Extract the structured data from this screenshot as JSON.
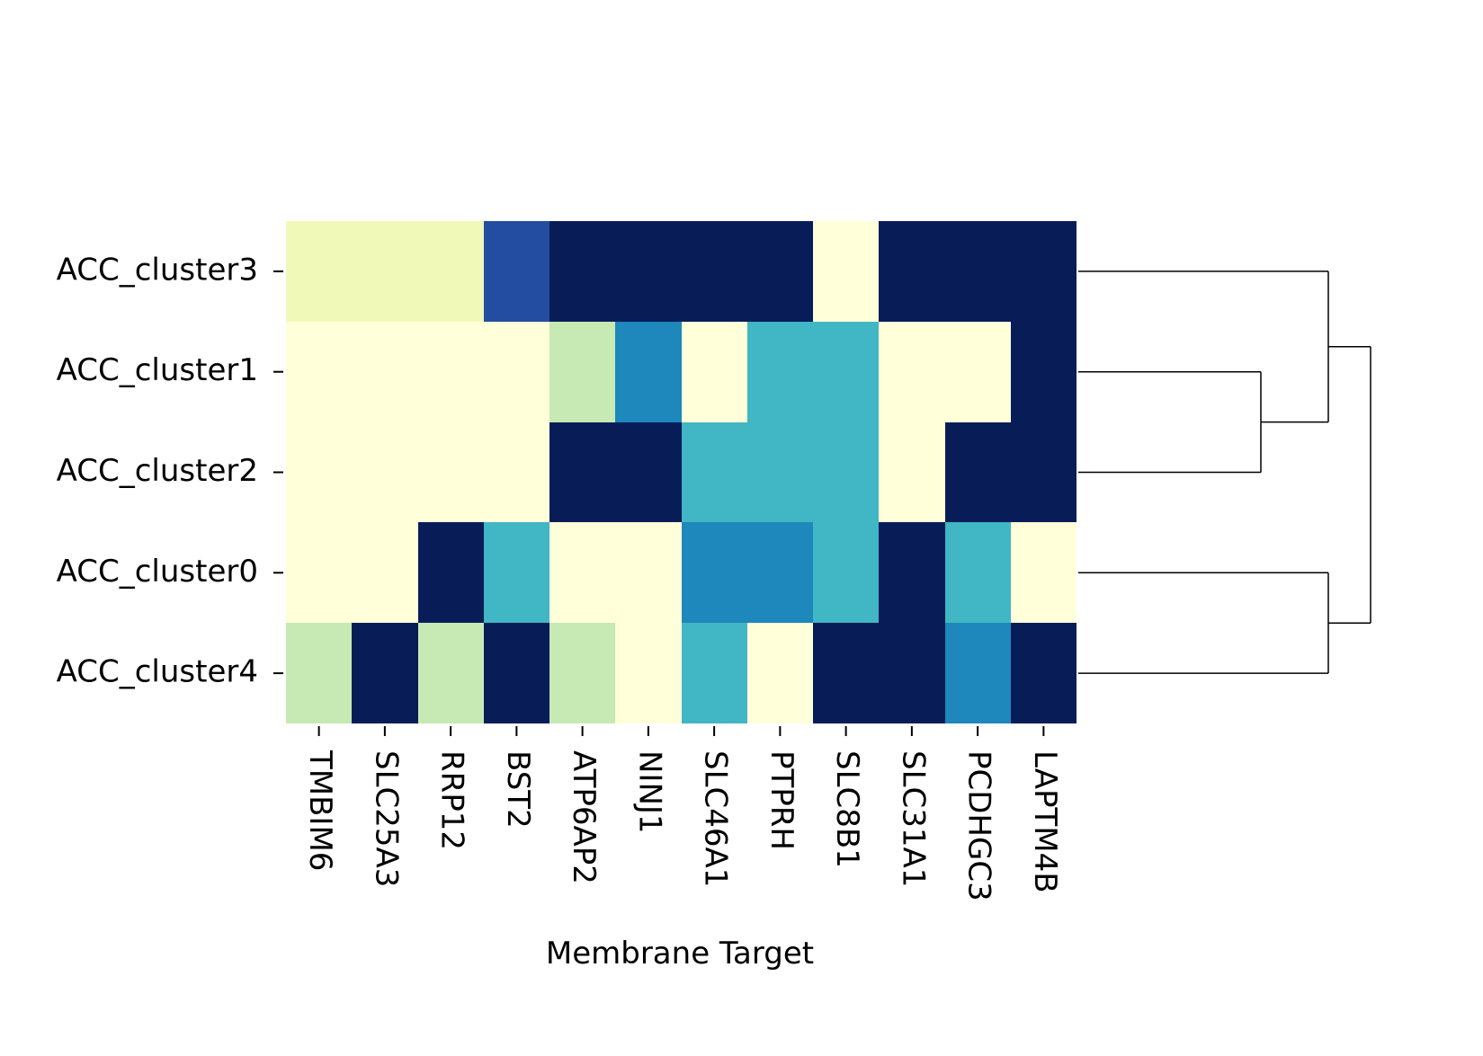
{
  "chart_data": {
    "type": "heatmap",
    "title": "",
    "xlabel": "Membrane Target",
    "ylabel": "",
    "colormap": "YlGnBu",
    "value_range": [
      0,
      1
    ],
    "legend": "none",
    "grid": false,
    "row_dendrogram": "right",
    "rows": [
      "ACC_cluster3",
      "ACC_cluster1",
      "ACC_cluster2",
      "ACC_cluster0",
      "ACC_cluster4"
    ],
    "columns": [
      "TMBIM6",
      "SLC25A3",
      "RRP12",
      "BST2",
      "ATP6AP2",
      "NINJ1",
      "SLC46A1",
      "PTPRH",
      "SLC8B1",
      "SLC31A1",
      "PCDHGC3",
      "LAPTM4B"
    ],
    "values": [
      [
        0.1,
        0.1,
        0.1,
        0.8,
        1,
        1,
        1,
        1,
        0,
        1,
        1,
        1
      ],
      [
        0,
        0,
        0,
        0,
        0.25,
        0.65,
        0,
        0.5,
        0.5,
        0,
        0,
        1
      ],
      [
        0,
        0,
        0,
        0,
        1,
        1,
        0.5,
        0.5,
        0.5,
        0,
        1,
        1
      ],
      [
        0,
        0,
        1,
        0.5,
        0,
        0,
        0.65,
        0.65,
        0.5,
        1,
        0.5,
        0
      ],
      [
        0.25,
        1,
        0.25,
        1,
        0.25,
        0,
        0.5,
        0,
        1,
        1,
        0.65,
        1
      ]
    ],
    "row_linkage": [
      {
        "left": "ACC_cluster1",
        "right": "ACC_cluster2",
        "height": 0.27
      },
      {
        "left": "ACC_cluster3",
        "right": "merge:ACC_cluster1+ACC_cluster2",
        "height": 0.0
      },
      {
        "left": "ACC_cluster0",
        "right": "ACC_cluster4",
        "height": 0.0
      },
      {
        "left": "merge:ACC_cluster3+ACC_cluster1+ACC_cluster2",
        "right": "merge:ACC_cluster0+ACC_cluster4",
        "height": -0.17
      }
    ]
  }
}
